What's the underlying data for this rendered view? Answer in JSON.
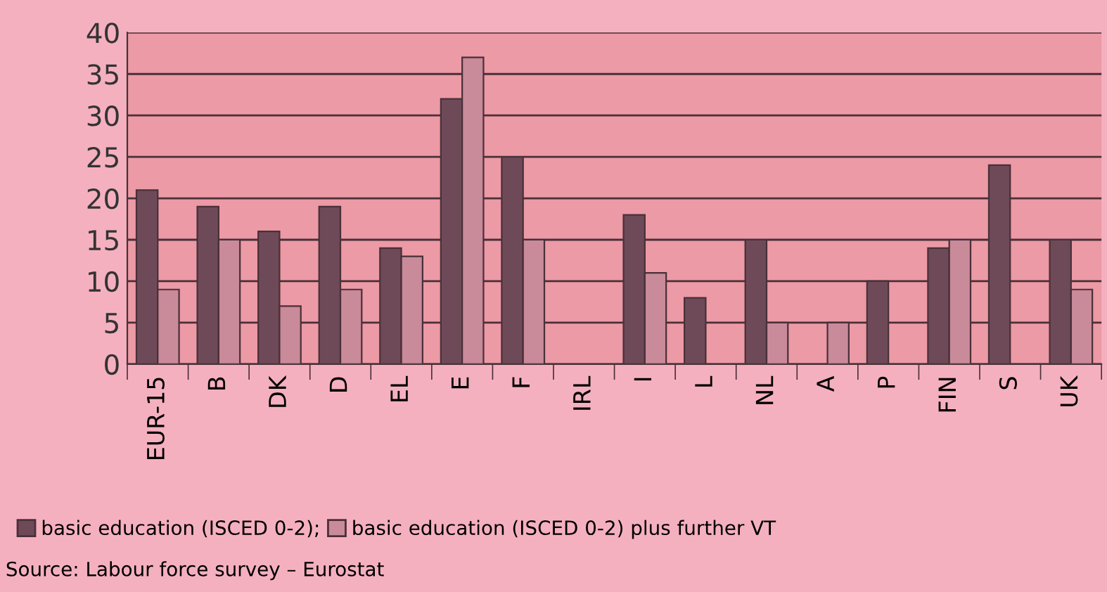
{
  "chart_data": {
    "type": "bar",
    "categories": [
      "EUR-15",
      "B",
      "DK",
      "D",
      "EL",
      "E",
      "F",
      "IRL",
      "I",
      "L",
      "NL",
      "A",
      "P",
      "FIN",
      "S",
      "UK"
    ],
    "series": [
      {
        "name": "basic education (ISCED 0-2);",
        "color": "#6e4a58",
        "values": [
          21,
          19,
          16,
          19,
          14,
          32,
          25,
          null,
          18,
          8,
          15,
          null,
          10,
          14,
          24,
          15
        ]
      },
      {
        "name": "basic education (ISCED 0-2) plus further VT",
        "color": "#c98a9a",
        "values": [
          9,
          15,
          7,
          9,
          13,
          37,
          15,
          null,
          11,
          null,
          5,
          5,
          null,
          15,
          null,
          9
        ]
      }
    ],
    "ylim": [
      0,
      40
    ],
    "yticks": [
      0,
      5,
      10,
      15,
      20,
      25,
      30,
      35,
      40
    ],
    "grid": "y",
    "legend": "bottom left",
    "annotations": [
      "Source: Labour force survey – Eurostat"
    ]
  }
}
